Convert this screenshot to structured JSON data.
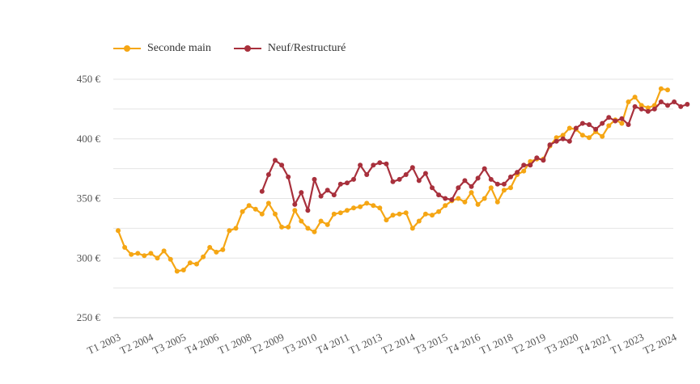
{
  "chart_data": {
    "type": "line",
    "title": "",
    "xlabel": "",
    "ylabel": "",
    "ylim": [
      245,
      455
    ],
    "yticks": [
      250,
      300,
      350,
      400,
      450
    ],
    "ytick_labels": [
      "250 €",
      "300 €",
      "350 €",
      "400 €",
      "450 €"
    ],
    "grid": true,
    "legend_position": "top-left",
    "x_start_quarter": "T1 2003",
    "x_tick_labels": [
      {
        "q": 0,
        "label": "T1 2003"
      },
      {
        "q": 5,
        "label": "T2 2004"
      },
      {
        "q": 10,
        "label": "T3 2005"
      },
      {
        "q": 15,
        "label": "T4 2006"
      },
      {
        "q": 20,
        "label": "T1 2008"
      },
      {
        "q": 25,
        "label": "T2 2009"
      },
      {
        "q": 30,
        "label": "T3 2010"
      },
      {
        "q": 35,
        "label": "T4 2011"
      },
      {
        "q": 40,
        "label": "T1 2013"
      },
      {
        "q": 45,
        "label": "T2 2014"
      },
      {
        "q": 50,
        "label": "T3 2015"
      },
      {
        "q": 55,
        "label": "T4 2016"
      },
      {
        "q": 60,
        "label": "T1 2018"
      },
      {
        "q": 65,
        "label": "T2 2019"
      },
      {
        "q": 70,
        "label": "T3 2020"
      },
      {
        "q": 75,
        "label": "T4 2021"
      },
      {
        "q": 80,
        "label": "T1 2023"
      },
      {
        "q": 85,
        "label": "T2 2024"
      }
    ],
    "series": [
      {
        "name": "Seconde main",
        "color": "#F5A614",
        "start_q": 0,
        "values": [
          323,
          309,
          303,
          304,
          302,
          304,
          300,
          306,
          299,
          289,
          290,
          296,
          295,
          301,
          309,
          305,
          307,
          323,
          325,
          339,
          344,
          341,
          337,
          346,
          337,
          326,
          326,
          340,
          331,
          325,
          322,
          331,
          328,
          337,
          338,
          340,
          342,
          343,
          346,
          344,
          342,
          332,
          336,
          337,
          338,
          325,
          331,
          337,
          336,
          339,
          344,
          348,
          350,
          347,
          355,
          345,
          350,
          359,
          347,
          357,
          359,
          370,
          373,
          381,
          383,
          383,
          394,
          401,
          403,
          409,
          408,
          403,
          401,
          406,
          402,
          411,
          416,
          413,
          431,
          435,
          428,
          426,
          428,
          442,
          441
        ]
      },
      {
        "name": "Neuf/Restructuré",
        "color": "#A8303C",
        "start_q": 22,
        "values": [
          356,
          370,
          382,
          378,
          368,
          345,
          355,
          340,
          366,
          352,
          357,
          353,
          362,
          363,
          366,
          378,
          370,
          378,
          380,
          379,
          364,
          366,
          370,
          376,
          365,
          371,
          359,
          353,
          350,
          349,
          359,
          365,
          360,
          367,
          375,
          366,
          362,
          362,
          368,
          372,
          378,
          378,
          384,
          382,
          395,
          398,
          400,
          398,
          409,
          413,
          412,
          408,
          413,
          418,
          415,
          417,
          412,
          427,
          425,
          423,
          425,
          431,
          428,
          431,
          427,
          429
        ]
      }
    ]
  }
}
